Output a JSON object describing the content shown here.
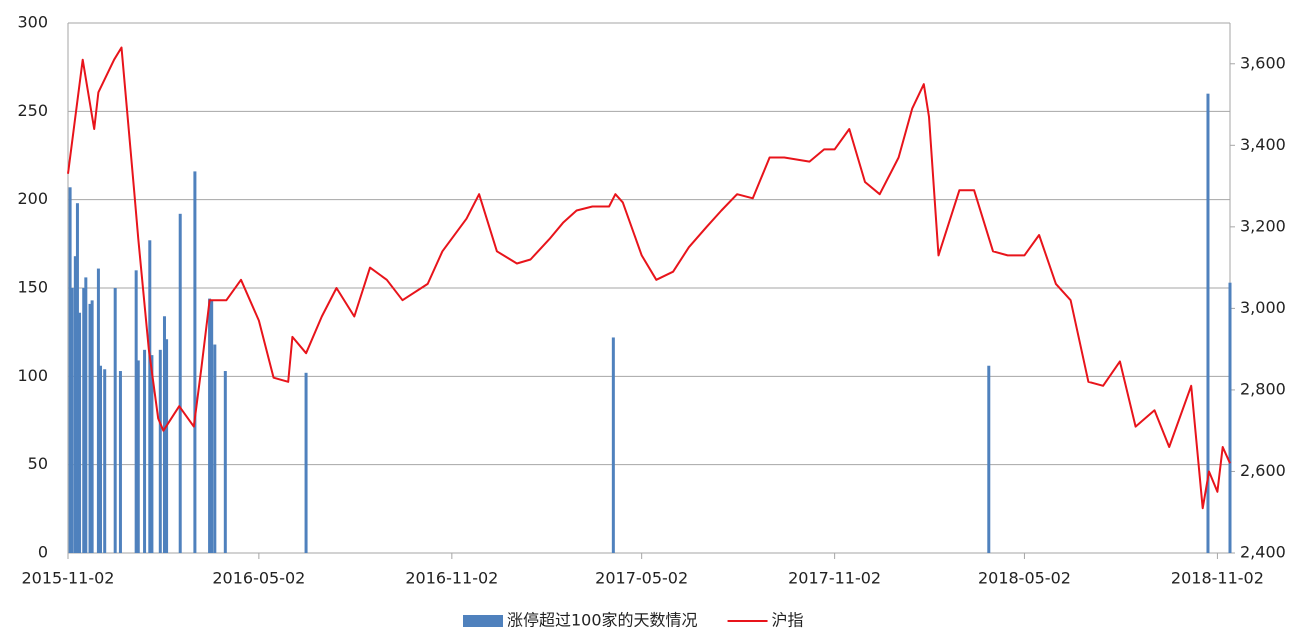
{
  "chart_data": {
    "type": "combo",
    "xlim": [
      "2015-11-02",
      "2018-11-14"
    ],
    "xticks": [
      "2015-11-02",
      "2016-05-02",
      "2016-11-02",
      "2017-05-02",
      "2017-11-02",
      "2018-05-02",
      "2018-11-02"
    ],
    "ylim": [
      0,
      300
    ],
    "yticks": [
      0,
      50,
      100,
      150,
      200,
      250,
      300
    ],
    "y2lim": [
      2400,
      3700
    ],
    "y2ticks": [
      {
        "value": 2400,
        "label": "2,400"
      },
      {
        "value": 2600,
        "label": "2,600"
      },
      {
        "value": 2800,
        "label": "2,800"
      },
      {
        "value": 3000,
        "label": "3,000"
      },
      {
        "value": 3200,
        "label": "3,200"
      },
      {
        "value": 3400,
        "label": "3,400"
      },
      {
        "value": 3600,
        "label": "3,600"
      }
    ],
    "grid": true,
    "legend": "bottom",
    "series": [
      {
        "name": "涨停超过100家的天数情况",
        "type": "bar",
        "color": "#4f81bd",
        "x": [
          "2015-11-04",
          "2015-11-06",
          "2015-11-09",
          "2015-11-11",
          "2015-11-13",
          "2015-11-17",
          "2015-11-19",
          "2015-11-23",
          "2015-11-25",
          "2015-12-01",
          "2015-12-03",
          "2015-12-07",
          "2015-12-17",
          "2015-12-22",
          "2016-01-06",
          "2016-01-08",
          "2016-01-14",
          "2016-01-19",
          "2016-01-21",
          "2016-01-29",
          "2016-02-02",
          "2016-02-04",
          "2016-02-17",
          "2016-03-02",
          "2016-03-16",
          "2016-03-18",
          "2016-03-21",
          "2016-03-31",
          "2016-06-16",
          "2017-04-05",
          "2018-03-29",
          "2018-10-24",
          "2018-11-14"
        ],
        "values": [
          207,
          150,
          168,
          198,
          136,
          150,
          156,
          141,
          143,
          161,
          106,
          104,
          150,
          103,
          160,
          109,
          115,
          177,
          112,
          115,
          134,
          121,
          192,
          216,
          144,
          143,
          118,
          103,
          102,
          122,
          106,
          260,
          153
        ]
      },
      {
        "name": "沪指",
        "type": "line",
        "color": "#e8141b",
        "axis": "y2",
        "x": [
          "2015-11-02",
          "2015-11-16",
          "2015-11-27",
          "2015-12-01",
          "2015-12-16",
          "2015-12-23",
          "2016-01-04",
          "2016-01-08",
          "2016-01-18",
          "2016-01-27",
          "2016-02-01",
          "2016-02-16",
          "2016-03-01",
          "2016-03-08",
          "2016-03-16",
          "2016-04-01",
          "2016-04-15",
          "2016-05-02",
          "2016-05-16",
          "2016-05-30",
          "2016-06-03",
          "2016-06-16",
          "2016-07-01",
          "2016-07-15",
          "2016-08-01",
          "2016-08-16",
          "2016-09-01",
          "2016-09-16",
          "2016-10-10",
          "2016-10-24",
          "2016-11-16",
          "2016-11-28",
          "2016-12-15",
          "2017-01-03",
          "2017-01-16",
          "2017-02-03",
          "2017-02-16",
          "2017-03-01",
          "2017-03-16",
          "2017-04-01",
          "2017-04-07",
          "2017-04-14",
          "2017-05-02",
          "2017-05-16",
          "2017-06-01",
          "2017-06-16",
          "2017-07-03",
          "2017-07-17",
          "2017-08-01",
          "2017-08-16",
          "2017-09-01",
          "2017-09-15",
          "2017-10-09",
          "2017-10-23",
          "2017-11-02",
          "2017-11-16",
          "2017-12-01",
          "2017-12-15",
          "2018-01-02",
          "2018-01-15",
          "2018-01-26",
          "2018-01-31",
          "2018-02-09",
          "2018-03-01",
          "2018-03-15",
          "2018-04-02",
          "2018-04-16",
          "2018-05-02",
          "2018-05-16",
          "2018-06-01",
          "2018-06-15",
          "2018-07-02",
          "2018-07-16",
          "2018-08-01",
          "2018-08-16",
          "2018-09-03",
          "2018-09-17",
          "2018-10-08",
          "2018-10-19",
          "2018-10-25",
          "2018-11-02",
          "2018-11-07",
          "2018-11-14"
        ],
        "values": [
          3330,
          3610,
          3440,
          3530,
          3610,
          3640,
          3290,
          3170,
          2900,
          2730,
          2700,
          2760,
          2710,
          2850,
          3020,
          3020,
          3070,
          2970,
          2830,
          2820,
          2930,
          2890,
          2980,
          3050,
          2980,
          3100,
          3070,
          3020,
          3060,
          3140,
          3220,
          3280,
          3140,
          3110,
          3120,
          3170,
          3210,
          3240,
          3250,
          3250,
          3280,
          3260,
          3130,
          3070,
          3090,
          3150,
          3200,
          3240,
          3280,
          3270,
          3370,
          3370,
          3360,
          3390,
          3390,
          3440,
          3310,
          3280,
          3370,
          3490,
          3550,
          3470,
          3130,
          3290,
          3290,
          3140,
          3130,
          3130,
          3180,
          3060,
          3020,
          2820,
          2810,
          2870,
          2710,
          2750,
          2660,
          2810,
          2510,
          2600,
          2550,
          2660,
          2620
        ]
      }
    ]
  }
}
